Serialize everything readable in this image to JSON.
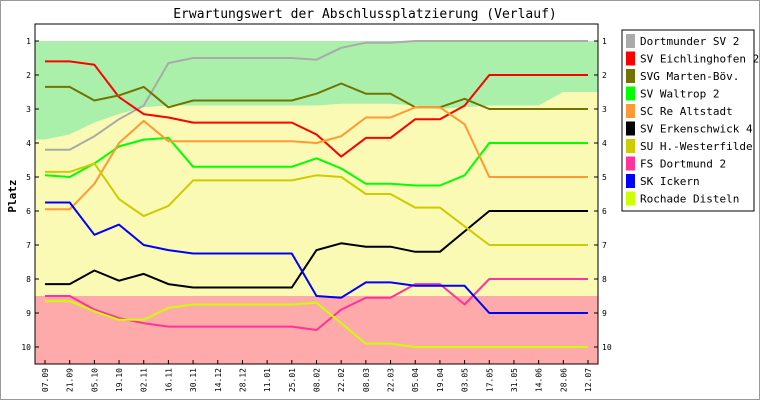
{
  "chart_data": {
    "type": "line",
    "title": "Erwartungswert der Abschlussplatzierung (Verlauf)",
    "ylabel": "Platz",
    "xlabel": "",
    "ylim": [
      0.5,
      10.5
    ],
    "y_inverted": true,
    "y_ticks": [
      1,
      2,
      3,
      4,
      5,
      6,
      7,
      8,
      9,
      10
    ],
    "x_categories": [
      "07.09",
      "21.09",
      "05.10",
      "19.10",
      "02.11",
      "16.11",
      "30.11",
      "14.12",
      "28.12",
      "11.01",
      "25.01",
      "08.02",
      "22.02",
      "08.03",
      "22.03",
      "05.04",
      "19.04",
      "03.05",
      "17.05",
      "31.05",
      "14.06",
      "28.06",
      "12.07"
    ],
    "legend_position": "right",
    "zones": [
      {
        "name": "promotion",
        "color": "#aaf0aa",
        "upper_boundary": [
          1,
          1,
          1,
          1,
          1,
          1,
          1,
          1,
          1,
          1,
          1,
          1,
          1,
          1,
          1,
          1,
          1,
          1,
          1,
          1,
          1,
          1,
          1
        ],
        "lower_boundary": [
          3.9,
          3.75,
          3.4,
          3.15,
          2.95,
          2.9,
          2.9,
          2.9,
          2.9,
          2.9,
          2.9,
          2.9,
          2.85,
          2.85,
          2.85,
          2.9,
          3.0,
          2.95,
          2.9,
          2.9,
          2.9,
          2.5,
          2.5
        ]
      },
      {
        "name": "middle",
        "color": "#fafab4",
        "upper_boundary": [
          3.9,
          3.75,
          3.4,
          3.15,
          2.95,
          2.9,
          2.9,
          2.9,
          2.9,
          2.9,
          2.9,
          2.9,
          2.85,
          2.85,
          2.85,
          2.9,
          3.0,
          2.95,
          2.9,
          2.9,
          2.9,
          2.5,
          2.5
        ],
        "lower_boundary": [
          8.5,
          8.5,
          8.5,
          8.5,
          8.5,
          8.5,
          8.5,
          8.5,
          8.5,
          8.5,
          8.5,
          8.5,
          8.5,
          8.5,
          8.5,
          8.5,
          8.5,
          8.5,
          8.5,
          8.5,
          8.5,
          8.5,
          8.5
        ]
      },
      {
        "name": "relegation",
        "color": "#ffaaaa",
        "upper_boundary": [
          8.5,
          8.5,
          8.5,
          8.5,
          8.5,
          8.5,
          8.5,
          8.5,
          8.5,
          8.5,
          8.5,
          8.5,
          8.5,
          8.5,
          8.5,
          8.5,
          8.5,
          8.5,
          8.5,
          8.5,
          8.5,
          8.5,
          8.5
        ],
        "lower_boundary": [
          10.5,
          10.5,
          10.5,
          10.5,
          10.5,
          10.5,
          10.5,
          10.5,
          10.5,
          10.5,
          10.5,
          10.5,
          10.5,
          10.5,
          10.5,
          10.5,
          10.5,
          10.5,
          10.5,
          10.5,
          10.5,
          10.5,
          10.5
        ]
      }
    ],
    "series": [
      {
        "name": "Dortmunder SV 2",
        "color": "#aaaaaa",
        "values": [
          4.2,
          4.2,
          3.8,
          3.3,
          2.9,
          1.65,
          1.5,
          1.5,
          1.5,
          1.5,
          1.5,
          1.55,
          1.2,
          1.05,
          1.05,
          1.0,
          1.0,
          1.0,
          1.0,
          1.0,
          1.0,
          1.0,
          1.0
        ]
      },
      {
        "name": "SV Eichlinghofen 2",
        "color": "#ff0000",
        "values": [
          1.6,
          1.6,
          1.7,
          2.65,
          3.15,
          3.25,
          3.4,
          3.4,
          3.4,
          3.4,
          3.4,
          3.75,
          4.4,
          3.85,
          3.85,
          3.3,
          3.3,
          2.9,
          2.0,
          2.0,
          2.0,
          2.0,
          2.0
        ]
      },
      {
        "name": "SVG Marten-Böv.",
        "color": "#737300",
        "values": [
          2.35,
          2.35,
          2.75,
          2.6,
          2.35,
          2.95,
          2.75,
          2.75,
          2.75,
          2.75,
          2.75,
          2.55,
          2.25,
          2.55,
          2.55,
          2.95,
          2.95,
          2.7,
          3.0,
          3.0,
          3.0,
          3.0,
          3.0
        ]
      },
      {
        "name": "SV Waltrop 2",
        "color": "#00ff00",
        "values": [
          4.95,
          5.0,
          4.6,
          4.1,
          3.9,
          3.85,
          4.7,
          4.7,
          4.7,
          4.7,
          4.7,
          4.45,
          4.75,
          5.2,
          5.2,
          5.25,
          5.25,
          4.95,
          4.0,
          4.0,
          4.0,
          4.0,
          4.0
        ]
      },
      {
        "name": "SC Re Altstadt",
        "color": "#ff9933",
        "values": [
          5.95,
          5.95,
          5.2,
          4.0,
          3.35,
          3.95,
          3.95,
          3.95,
          3.95,
          3.95,
          3.95,
          4.0,
          3.8,
          3.25,
          3.25,
          2.95,
          2.95,
          3.45,
          5.0,
          5.0,
          5.0,
          5.0,
          5.0
        ]
      },
      {
        "name": "SV Erkenschwick 4",
        "color": "#000000",
        "values": [
          8.15,
          8.15,
          7.75,
          8.05,
          7.85,
          8.15,
          8.25,
          8.25,
          8.25,
          8.25,
          8.25,
          7.15,
          6.95,
          7.05,
          7.05,
          7.2,
          7.2,
          6.6,
          6.0,
          6.0,
          6.0,
          6.0,
          6.0
        ]
      },
      {
        "name": "SU H.-Westerfilde",
        "color": "#cccc00",
        "values": [
          4.85,
          4.85,
          4.6,
          5.65,
          6.15,
          5.85,
          5.1,
          5.1,
          5.1,
          5.1,
          5.1,
          4.95,
          5.0,
          5.5,
          5.5,
          5.9,
          5.9,
          6.45,
          7.0,
          7.0,
          7.0,
          7.0,
          7.0
        ]
      },
      {
        "name": "FS Dortmund 2",
        "color": "#ff3399",
        "values": [
          8.5,
          8.5,
          8.9,
          9.15,
          9.3,
          9.4,
          9.4,
          9.4,
          9.4,
          9.4,
          9.4,
          9.5,
          8.9,
          8.55,
          8.55,
          8.15,
          8.15,
          8.75,
          8.0,
          8.0,
          8.0,
          8.0,
          8.0
        ]
      },
      {
        "name": "SK Ickern",
        "color": "#0000ff",
        "values": [
          5.75,
          5.75,
          6.7,
          6.4,
          7.0,
          7.15,
          7.25,
          7.25,
          7.25,
          7.25,
          7.25,
          8.5,
          8.55,
          8.1,
          8.1,
          8.2,
          8.2,
          8.2,
          9.0,
          9.0,
          9.0,
          9.0,
          9.0
        ]
      },
      {
        "name": "Rochade Disteln",
        "color": "#ccff00",
        "values": [
          8.65,
          8.65,
          8.95,
          9.2,
          9.2,
          8.85,
          8.75,
          8.75,
          8.75,
          8.75,
          8.75,
          8.7,
          9.3,
          9.9,
          9.9,
          10.0,
          10.0,
          10.0,
          10.0,
          10.0,
          10.0,
          10.0,
          10.0
        ]
      }
    ]
  }
}
